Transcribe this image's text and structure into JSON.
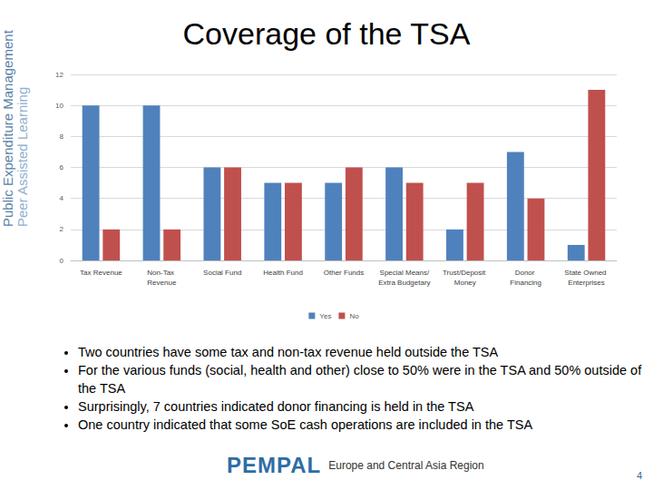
{
  "chart_data": {
    "type": "bar",
    "title": "Coverage of the TSA",
    "categories": [
      "Tax Revenue",
      "Non-Tax Revenue",
      "Social Fund",
      "Health Fund",
      "Other Funds",
      "Special Means/Extra Budgetary",
      "Trust/Deposit Money",
      "Donor Financing",
      "State Owned Enterprises"
    ],
    "series": [
      {
        "name": "Yes",
        "color": "#4f81bd",
        "values": [
          10,
          10,
          6,
          5,
          5,
          6,
          2,
          7,
          1
        ]
      },
      {
        "name": "No",
        "color": "#c0504d",
        "values": [
          2,
          2,
          6,
          5,
          6,
          5,
          5,
          4,
          11
        ]
      }
    ],
    "ylim": [
      0,
      12
    ],
    "yticks": [
      0,
      2,
      4,
      6,
      8,
      10,
      12
    ],
    "grid": true,
    "legend": "bottom"
  },
  "slide": {
    "side_text": [
      "Public Expenditure Management",
      "Peer Assisted Learning"
    ],
    "bullets": [
      "Two countries have some tax and non-tax revenue held outside the TSA",
      "For the various funds (social, health and other) close to 50% were in the TSA and 50% outside of the TSA",
      "Surprisingly, 7 countries indicated donor financing is held in the TSA",
      "One country indicated that some SoE cash operations are included in the TSA"
    ],
    "footer": {
      "logo": "PEMPAL",
      "region": "Europe and Central Asia Region"
    },
    "page_number": 4
  }
}
